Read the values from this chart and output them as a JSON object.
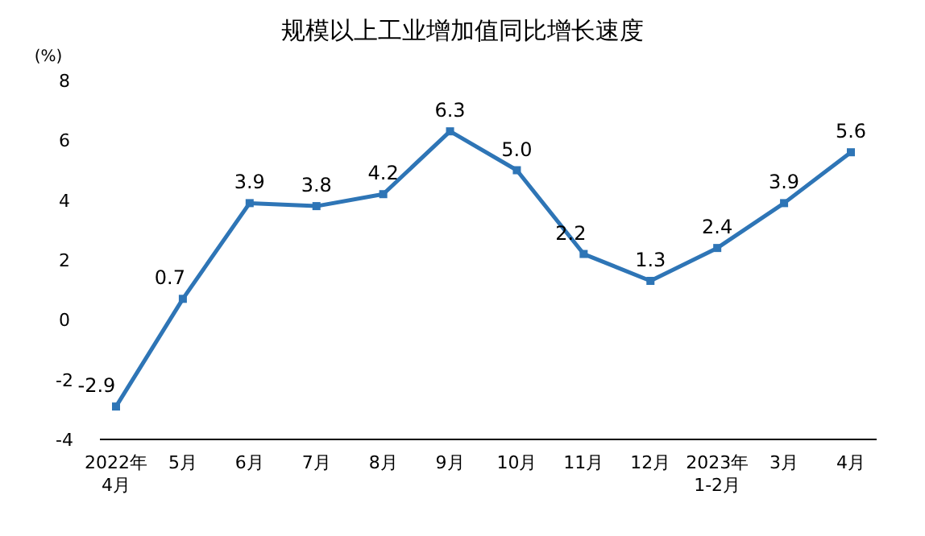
{
  "chart_data": {
    "type": "line",
    "title": "规模以上工业增加值同比增长速度",
    "ylabel": "(%)",
    "categories": [
      "2022年\n4月",
      "5月",
      "6月",
      "7月",
      "8月",
      "9月",
      "10月",
      "11月",
      "12月",
      "2023年\n1-2月",
      "3月",
      "4月"
    ],
    "series": [
      {
        "color": "#2e75b6",
        "values": [
          -2.9,
          0.7,
          3.9,
          3.8,
          4.2,
          6.3,
          5.0,
          2.2,
          1.3,
          2.4,
          3.9,
          5.6
        ]
      }
    ],
    "value_labels": [
      "-2.9",
      "0.7",
      "3.9",
      "3.8",
      "4.2",
      "6.3",
      "5.0",
      "2.2",
      "1.3",
      "2.4",
      "3.9",
      "5.6"
    ],
    "ylim": [
      -4,
      8
    ],
    "yticks": [
      -4,
      -2,
      0,
      2,
      4,
      6,
      8
    ],
    "grid": false,
    "marker": "square",
    "line_style": "solid"
  }
}
